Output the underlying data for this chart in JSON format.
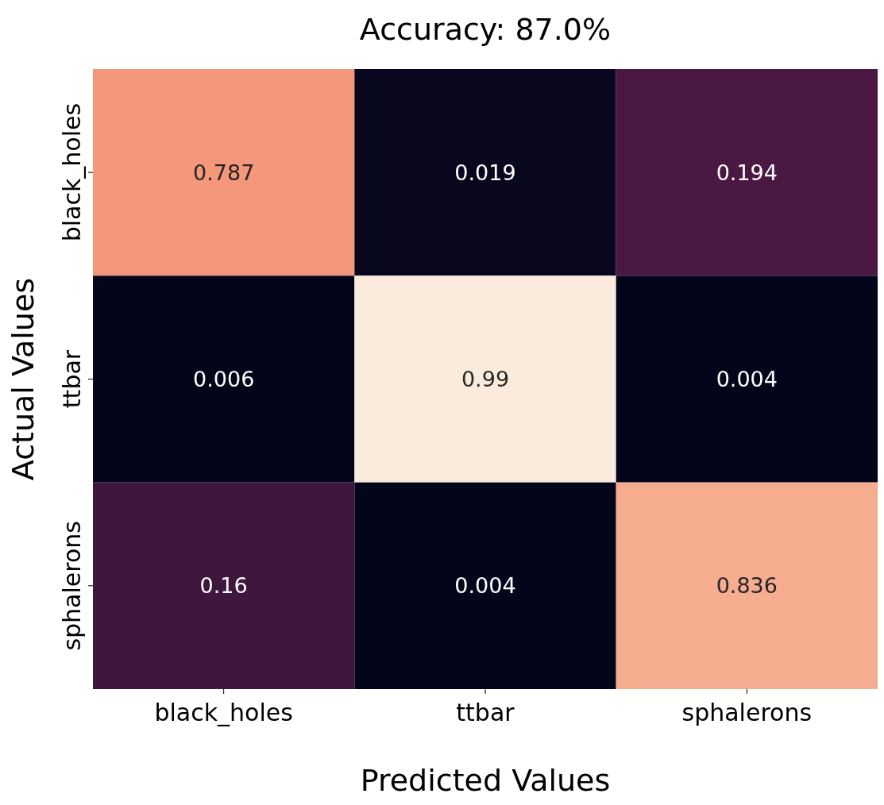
{
  "chart_data": {
    "type": "heatmap",
    "title": "Accuracy: 87.0%",
    "xlabel": "Predicted Values",
    "ylabel": "Actual Values",
    "categories": [
      "black_holes",
      "ttbar",
      "sphalerons"
    ],
    "y_categories": [
      "black_holes",
      "ttbar",
      "sphalerons"
    ],
    "cells": [
      [
        0.787,
        0.019,
        0.194
      ],
      [
        0.006,
        0.99,
        0.004
      ],
      [
        0.16,
        0.004,
        0.836
      ]
    ],
    "data_labels": true
  }
}
